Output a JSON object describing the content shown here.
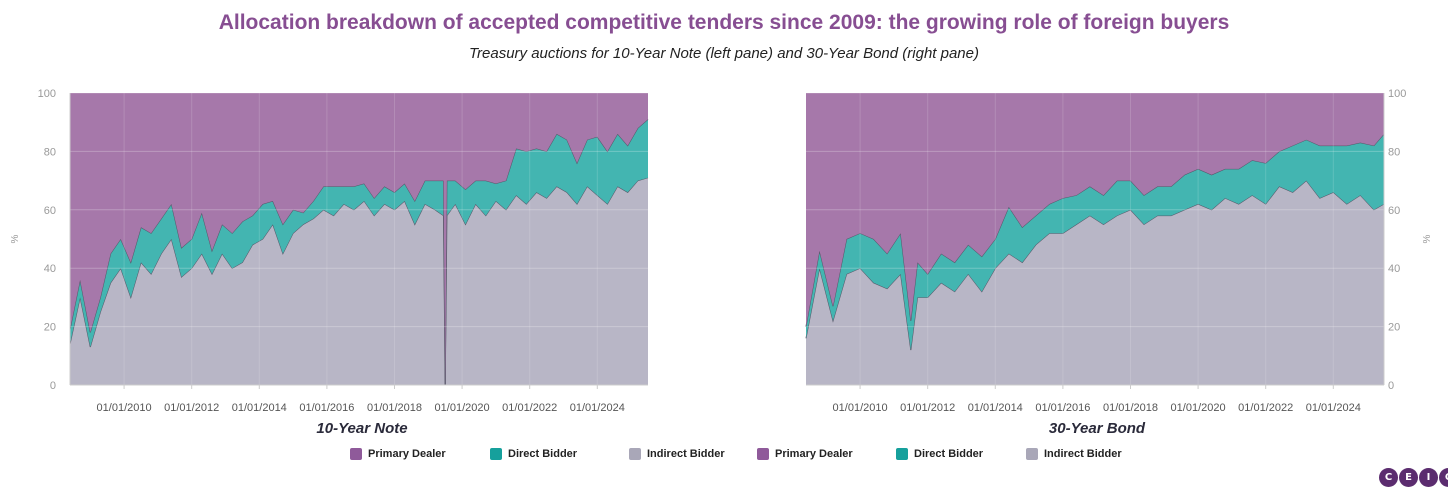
{
  "title": "Allocation breakdown of accepted competitive tenders since 2009: the growing role of foreign buyers",
  "subtitle": "Treasury auctions for 10-Year Note (left pane) and 30-Year Bond (right pane)",
  "colors": {
    "primary_dealer": "#a678aa",
    "direct_bidder": "#43b5b1",
    "indirect_bidder": "#b8b6c6",
    "line": "#555566",
    "grid": "#ececec",
    "axis_text": "#999999"
  },
  "legend": [
    {
      "label": "Primary Dealer",
      "color": "#8f5a9a"
    },
    {
      "label": "Direct Bidder",
      "color": "#16a09c"
    },
    {
      "label": "Indirect Bidder",
      "color": "#a9a7b8"
    },
    {
      "label": "Primary Dealer",
      "color": "#8f5a9a"
    },
    {
      "label": "Direct Bidder",
      "color": "#16a09c"
    },
    {
      "label": "Indirect Bidder",
      "color": "#a9a7b8"
    }
  ],
  "logo_letters": [
    "C",
    "E",
    "I",
    "C"
  ],
  "chart_data": [
    {
      "type": "area",
      "stacked": true,
      "title": "10-Year Note",
      "ylabel": "%",
      "ylim": [
        0,
        100
      ],
      "yticks": [
        0,
        20,
        40,
        60,
        80,
        100
      ],
      "xlim": [
        2008.4,
        2025.5
      ],
      "xticks": [
        2010,
        2012,
        2014,
        2016,
        2018,
        2020,
        2022,
        2024
      ],
      "xtick_labels": [
        "01/01/2010",
        "01/01/2012",
        "01/01/2014",
        "01/01/2016",
        "01/01/2018",
        "01/01/2020",
        "01/01/2022",
        "01/01/2024"
      ],
      "x": [
        2008.4,
        2008.7,
        2009.0,
        2009.3,
        2009.6,
        2009.9,
        2010.2,
        2010.5,
        2010.8,
        2011.1,
        2011.4,
        2011.7,
        2012.0,
        2012.3,
        2012.6,
        2012.9,
        2013.2,
        2013.5,
        2013.8,
        2014.1,
        2014.4,
        2014.7,
        2015.0,
        2015.3,
        2015.6,
        2015.9,
        2016.2,
        2016.5,
        2016.8,
        2017.1,
        2017.4,
        2017.7,
        2018.0,
        2018.3,
        2018.6,
        2018.9,
        2019.2,
        2019.45,
        2019.5,
        2019.55,
        2019.8,
        2020.1,
        2020.4,
        2020.7,
        2021.0,
        2021.3,
        2021.6,
        2021.9,
        2022.2,
        2022.5,
        2022.8,
        2023.1,
        2023.4,
        2023.7,
        2024.0,
        2024.3,
        2024.6,
        2024.9,
        2025.2,
        2025.5
      ],
      "series": [
        {
          "name": "Indirect Bidder",
          "values": [
            14,
            30,
            13,
            25,
            35,
            40,
            30,
            42,
            38,
            45,
            50,
            37,
            40,
            45,
            38,
            45,
            40,
            42,
            48,
            50,
            55,
            45,
            52,
            55,
            57,
            60,
            58,
            62,
            60,
            63,
            58,
            62,
            60,
            63,
            55,
            62,
            60,
            58,
            0,
            58,
            62,
            55,
            62,
            58,
            63,
            60,
            65,
            62,
            66,
            64,
            68,
            66,
            62,
            68,
            65,
            62,
            68,
            66,
            70,
            71
          ]
        },
        {
          "name": "Direct Bidder",
          "values": [
            5,
            6,
            5,
            5,
            10,
            10,
            12,
            12,
            14,
            12,
            12,
            10,
            10,
            14,
            8,
            10,
            12,
            14,
            10,
            12,
            8,
            10,
            8,
            4,
            6,
            8,
            10,
            6,
            8,
            6,
            6,
            6,
            6,
            6,
            8,
            8,
            10,
            12,
            0,
            12,
            8,
            12,
            8,
            12,
            6,
            10,
            16,
            18,
            15,
            16,
            18,
            18,
            14,
            16,
            20,
            18,
            18,
            16,
            18,
            20
          ]
        },
        {
          "name": "Primary Dealer",
          "values": [
            81,
            64,
            82,
            70,
            55,
            50,
            58,
            46,
            48,
            43,
            38,
            53,
            50,
            41,
            54,
            45,
            48,
            44,
            42,
            38,
            37,
            45,
            40,
            41,
            37,
            32,
            32,
            32,
            32,
            31,
            36,
            32,
            34,
            31,
            37,
            30,
            30,
            30,
            100,
            30,
            30,
            33,
            30,
            30,
            31,
            30,
            19,
            20,
            19,
            20,
            14,
            16,
            24,
            16,
            15,
            20,
            14,
            18,
            12,
            9
          ]
        }
      ]
    },
    {
      "type": "area",
      "stacked": true,
      "title": "30-Year Bond",
      "ylabel": "%",
      "ylim": [
        0,
        100
      ],
      "yticks": [
        0,
        20,
        40,
        60,
        80,
        100
      ],
      "xlim": [
        2008.4,
        2025.5
      ],
      "xticks": [
        2010,
        2012,
        2014,
        2016,
        2018,
        2020,
        2022,
        2024
      ],
      "xtick_labels": [
        "01/01/2010",
        "01/01/2012",
        "01/01/2014",
        "01/01/2016",
        "01/01/2018",
        "01/01/2020",
        "01/01/2022",
        "01/01/2024"
      ],
      "x": [
        2008.4,
        2008.8,
        2009.2,
        2009.6,
        2010.0,
        2010.4,
        2010.8,
        2011.2,
        2011.5,
        2011.7,
        2012.0,
        2012.4,
        2012.8,
        2013.2,
        2013.6,
        2014.0,
        2014.4,
        2014.8,
        2015.2,
        2015.6,
        2016.0,
        2016.4,
        2016.8,
        2017.2,
        2017.6,
        2018.0,
        2018.4,
        2018.8,
        2019.2,
        2019.6,
        2020.0,
        2020.4,
        2020.8,
        2021.2,
        2021.6,
        2022.0,
        2022.4,
        2022.8,
        2023.2,
        2023.6,
        2024.0,
        2024.4,
        2024.8,
        2025.2,
        2025.5
      ],
      "series": [
        {
          "name": "Indirect Bidder",
          "values": [
            16,
            40,
            22,
            38,
            40,
            35,
            33,
            38,
            12,
            30,
            30,
            35,
            32,
            38,
            32,
            40,
            45,
            42,
            48,
            52,
            52,
            55,
            58,
            55,
            58,
            60,
            55,
            58,
            58,
            60,
            62,
            60,
            64,
            62,
            65,
            62,
            68,
            66,
            70,
            64,
            66,
            62,
            65,
            60,
            62
          ]
        },
        {
          "name": "Direct Bidder",
          "values": [
            4,
            6,
            5,
            12,
            12,
            15,
            12,
            14,
            10,
            12,
            8,
            10,
            10,
            10,
            12,
            10,
            16,
            12,
            10,
            10,
            12,
            10,
            10,
            10,
            12,
            10,
            10,
            10,
            10,
            12,
            12,
            12,
            10,
            12,
            12,
            14,
            12,
            16,
            14,
            18,
            16,
            20,
            18,
            22,
            24
          ]
        },
        {
          "name": "Primary Dealer",
          "values": [
            80,
            54,
            73,
            50,
            48,
            50,
            55,
            48,
            78,
            58,
            62,
            55,
            58,
            52,
            56,
            50,
            39,
            46,
            42,
            38,
            36,
            35,
            32,
            35,
            30,
            30,
            35,
            32,
            32,
            28,
            26,
            28,
            26,
            26,
            23,
            24,
            20,
            18,
            16,
            18,
            18,
            18,
            17,
            18,
            14
          ]
        }
      ]
    }
  ]
}
